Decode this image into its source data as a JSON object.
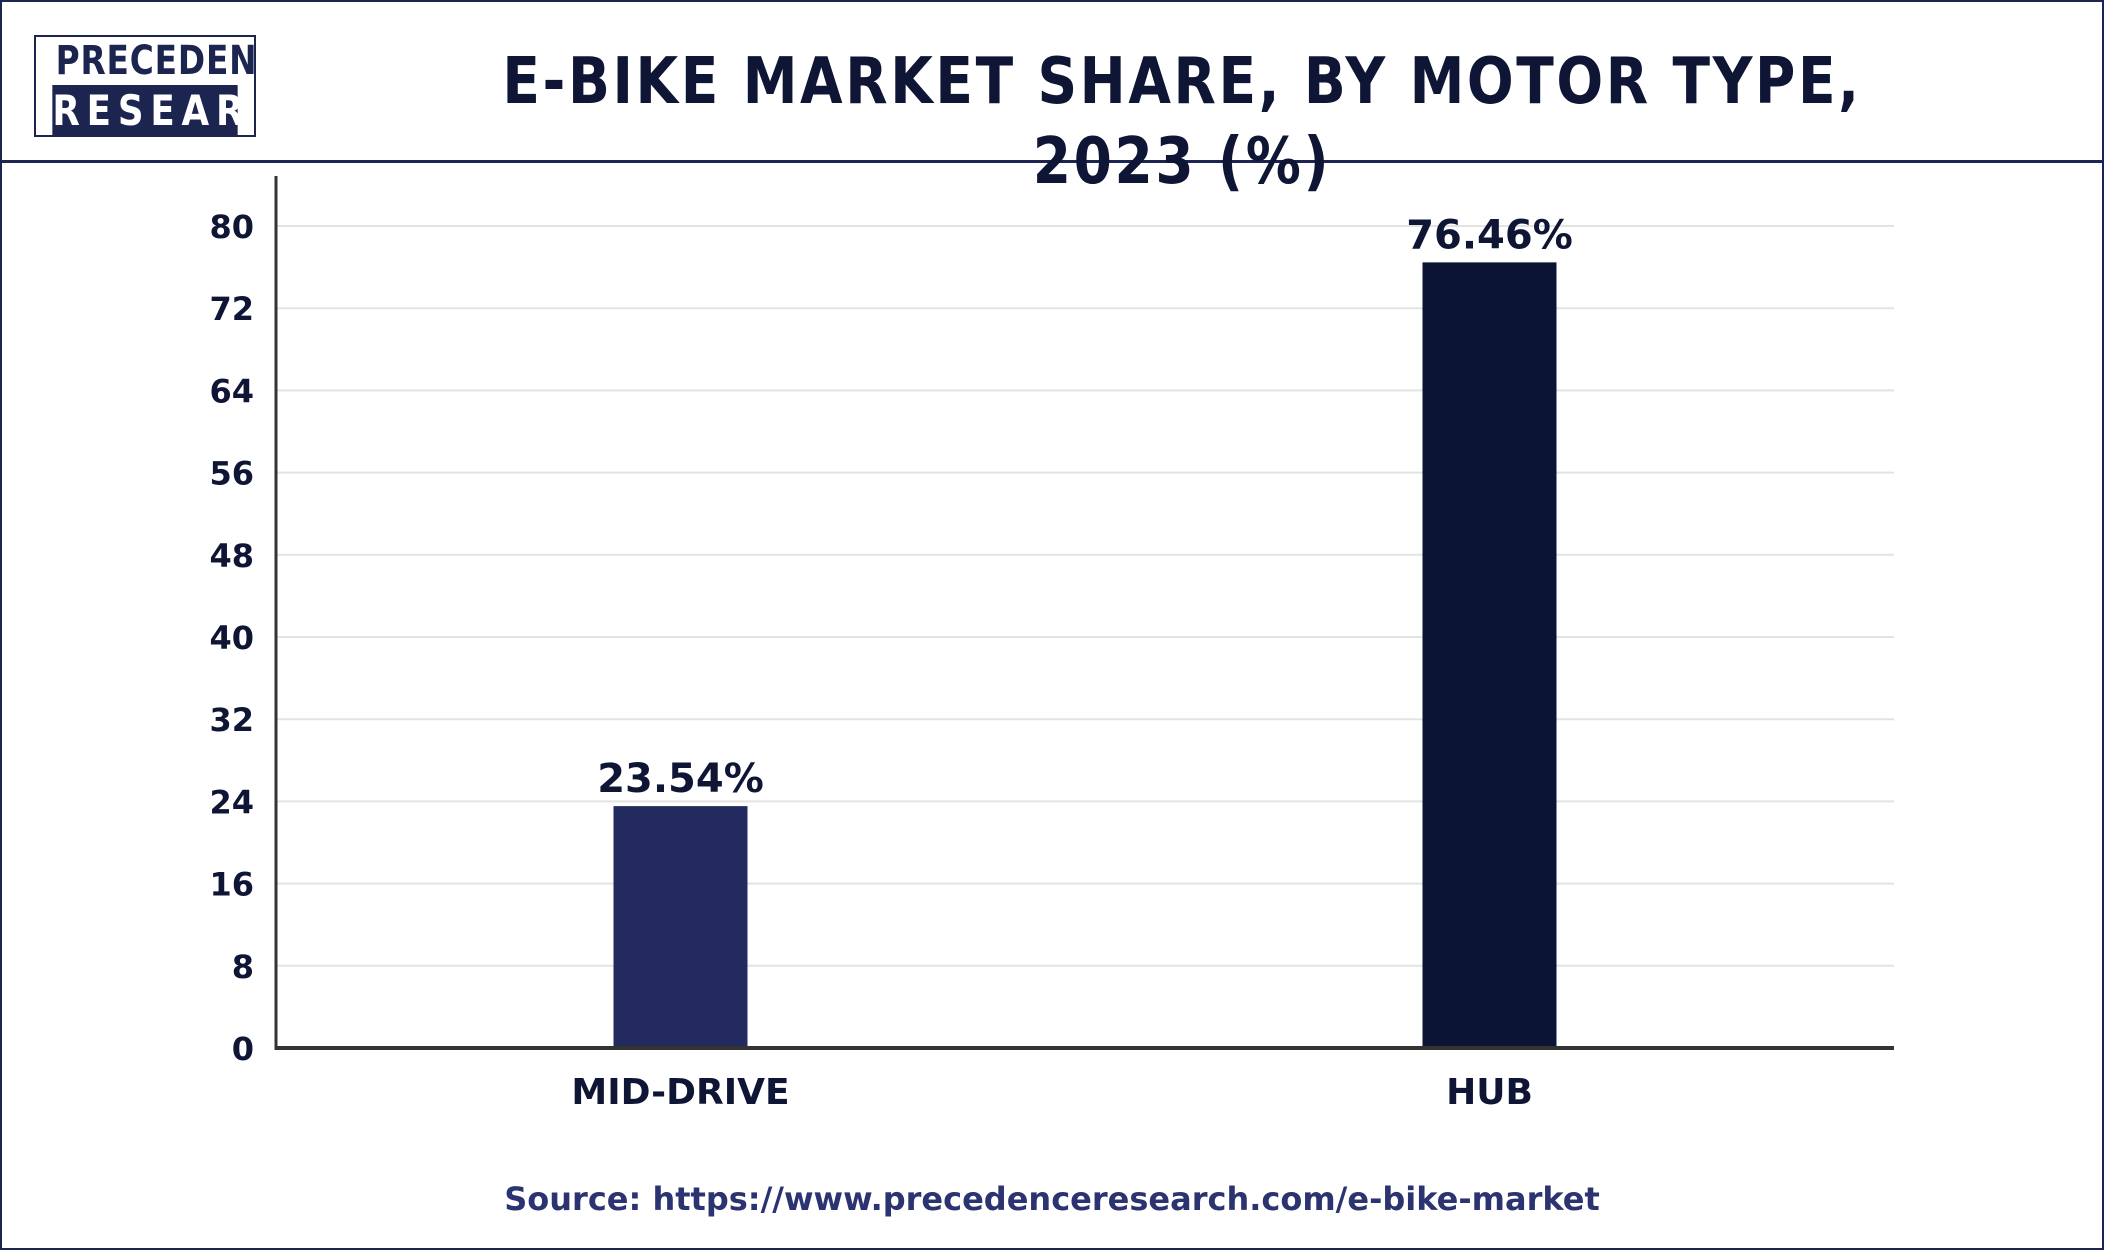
{
  "brand": {
    "logo_top": "PRECEDENCE",
    "logo_bottom": "RESEARCH",
    "navy": "#1c2450"
  },
  "source_text": "Source: https://www.precedenceresearch.com/e-bike-market",
  "chart_data": {
    "type": "bar",
    "title": "E-BIKE MARKET SHARE, BY MOTOR TYPE, 2023 (%)",
    "xlabel": "",
    "ylabel": "",
    "categories": [
      "MID-DRIVE",
      "HUB"
    ],
    "values": [
      23.54,
      76.46
    ],
    "value_labels": [
      "23.54%",
      "76.46%"
    ],
    "bar_colors": [
      "#232a5e",
      "#0c1434"
    ],
    "ylim": [
      0,
      80
    ],
    "yticks": [
      0,
      8,
      16,
      24,
      32,
      40,
      48,
      56,
      64,
      72,
      80
    ],
    "grid": true,
    "legend": "none"
  }
}
